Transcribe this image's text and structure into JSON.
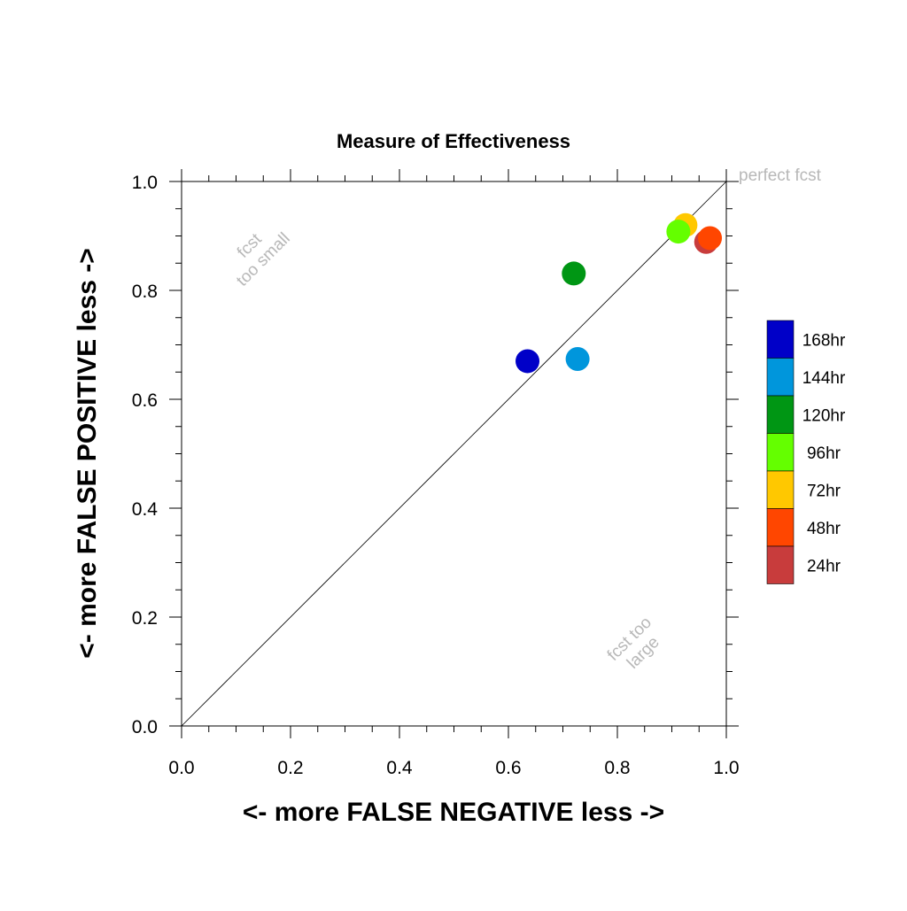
{
  "chart_data": {
    "type": "scatter",
    "title": "Measure of Effectiveness",
    "xlabel": "<- more   FALSE NEGATIVE   less ->",
    "ylabel": "<- more   FALSE POSITIVE   less ->",
    "xlim": [
      0.0,
      1.0
    ],
    "ylim": [
      0.0,
      1.0
    ],
    "x_ticks": [
      "0.0",
      "0.2",
      "0.4",
      "0.6",
      "0.8",
      "1.0"
    ],
    "y_ticks": [
      "0.0",
      "0.2",
      "0.4",
      "0.6",
      "0.8",
      "1.0"
    ],
    "grid": false,
    "diagonal_line": true,
    "legend_position": "right",
    "annotations": {
      "perfect": "perfect fcst",
      "small_line1": "fcst",
      "small_line2": "too small",
      "large_line1": "fcst too",
      "large_line2": "large"
    },
    "series": [
      {
        "name": "168hr",
        "color": "#0000c8",
        "x": 0.635,
        "y": 0.67
      },
      {
        "name": "144hr",
        "color": "#0096dc",
        "x": 0.727,
        "y": 0.674
      },
      {
        "name": "120hr",
        "color": "#009614",
        "x": 0.72,
        "y": 0.831
      },
      {
        "name": "96hr",
        "color": "#64ff00",
        "x": 0.912,
        "y": 0.908
      },
      {
        "name": "72hr",
        "color": "#ffc800",
        "x": 0.925,
        "y": 0.92
      },
      {
        "name": "48hr",
        "color": "#ff4600",
        "x": 0.97,
        "y": 0.896
      },
      {
        "name": "24hr",
        "color": "#c83c3c",
        "x": 0.963,
        "y": 0.889
      }
    ]
  }
}
